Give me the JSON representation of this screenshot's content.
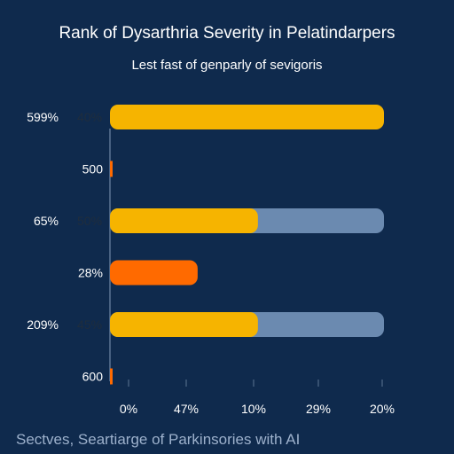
{
  "chart_data": {
    "type": "bar",
    "title": "Rank of Dysarthria Severity in Pelatindarpers",
    "subtitle": "Lest fast of genparly of sevigoris",
    "footer": "Sectves, Seartiarge of Parkinsories with AI",
    "rows": [
      {
        "left_label": "599%",
        "inner_label": "40%",
        "value": 1.0,
        "track": false,
        "color": "#f6b400"
      },
      {
        "left_label": "",
        "inner_label": "500",
        "value": 0.01,
        "track": false,
        "color": "#ff6a00"
      },
      {
        "left_label": "65%",
        "inner_label": "50%",
        "value": 0.54,
        "track": true,
        "color": "#f6b400"
      },
      {
        "left_label": "",
        "inner_label": "28%",
        "value": 0.32,
        "track": false,
        "color": "#ff6a00"
      },
      {
        "left_label": "209%",
        "inner_label": "45%",
        "value": 0.54,
        "track": true,
        "color": "#f6b400"
      },
      {
        "left_label": "",
        "inner_label": "600",
        "value": 0.01,
        "track": false,
        "color": "#ff6a00"
      }
    ],
    "x_ticks": [
      "0%",
      "47%",
      "10%",
      "29%",
      "20%"
    ],
    "colors": {
      "track": "#6b8ab0",
      "axis": "#5d7594",
      "background": "#0f2a4d"
    }
  }
}
